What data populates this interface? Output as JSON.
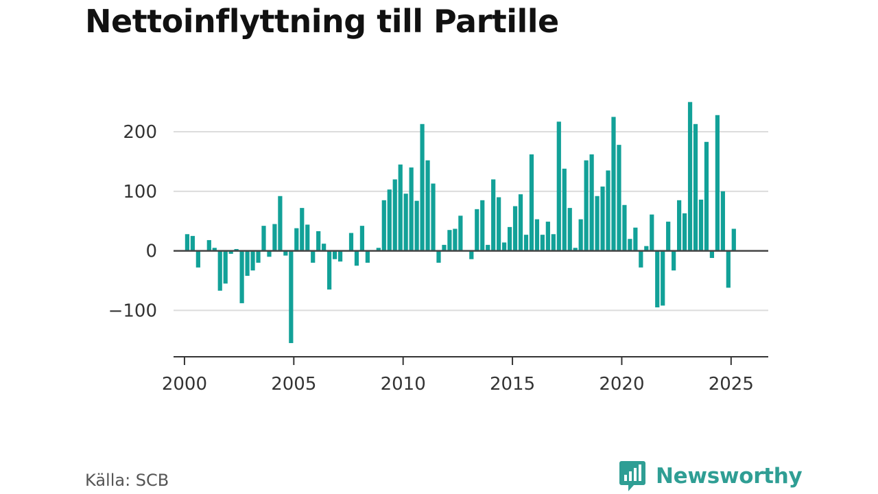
{
  "chart_data": {
    "type": "bar",
    "title": "Nettoinflyttning till Partille",
    "xlabel": "",
    "ylabel": "",
    "color": "#12a198",
    "xlim": [
      1999.5,
      2026.7
    ],
    "ylim": [
      -178,
      260
    ],
    "yticks": [
      -100,
      0,
      100,
      200
    ],
    "xticks": [
      2000,
      2005,
      2010,
      2015,
      2020,
      2025
    ],
    "ytick_labels": [
      "−100",
      "0",
      "100",
      "200"
    ],
    "xtick_labels": [
      "2000",
      "2005",
      "2010",
      "2015",
      "2020",
      "2025"
    ],
    "grid": true,
    "legend": "none",
    "x": [
      2000.125,
      2000.375,
      2000.625,
      2000.875,
      2001.125,
      2001.375,
      2001.625,
      2001.875,
      2002.125,
      2002.375,
      2002.625,
      2002.875,
      2003.125,
      2003.375,
      2003.625,
      2003.875,
      2004.125,
      2004.375,
      2004.625,
      2004.875,
      2005.125,
      2005.375,
      2005.625,
      2005.875,
      2006.125,
      2006.375,
      2006.625,
      2006.875,
      2007.125,
      2007.375,
      2007.625,
      2007.875,
      2008.125,
      2008.375,
      2008.625,
      2008.875,
      2009.125,
      2009.375,
      2009.625,
      2009.875,
      2010.125,
      2010.375,
      2010.625,
      2010.875,
      2011.125,
      2011.375,
      2011.625,
      2011.875,
      2012.125,
      2012.375,
      2012.625,
      2012.875,
      2013.125,
      2013.375,
      2013.625,
      2013.875,
      2014.125,
      2014.375,
      2014.625,
      2014.875,
      2015.125,
      2015.375,
      2015.625,
      2015.875,
      2016.125,
      2016.375,
      2016.625,
      2016.875,
      2017.125,
      2017.375,
      2017.625,
      2017.875,
      2018.125,
      2018.375,
      2018.625,
      2018.875,
      2019.125,
      2019.375,
      2019.625,
      2019.875,
      2020.125,
      2020.375,
      2020.625,
      2020.875,
      2021.125,
      2021.375,
      2021.625,
      2021.875,
      2022.125,
      2022.375,
      2022.625,
      2022.875,
      2023.125,
      2023.375,
      2023.625,
      2023.875,
      2024.125,
      2024.375,
      2024.625,
      2024.875,
      2025.125
    ],
    "values": [
      28,
      25,
      -28,
      0,
      18,
      5,
      -67,
      -55,
      -5,
      3,
      -88,
      -42,
      -33,
      -20,
      42,
      -10,
      45,
      92,
      -8,
      -155,
      38,
      72,
      44,
      -20,
      33,
      12,
      -65,
      -14,
      -18,
      0,
      30,
      -25,
      42,
      -20,
      0,
      5,
      85,
      103,
      120,
      145,
      96,
      140,
      84,
      213,
      152,
      113,
      -20,
      10,
      35,
      37,
      59,
      0,
      -14,
      70,
      85,
      10,
      120,
      90,
      14,
      40,
      75,
      95,
      27,
      162,
      53,
      27,
      49,
      28,
      217,
      138,
      72,
      5,
      53,
      152,
      162,
      92,
      108,
      135,
      225,
      178,
      77,
      20,
      39,
      -28,
      8,
      61,
      -95,
      -92,
      49,
      -33,
      85,
      63,
      250,
      213,
      86,
      183,
      -12,
      228,
      100,
      -62,
      37
    ]
  },
  "source": "Källa: SCB",
  "logo": {
    "text": "Newsworthy",
    "icon": "newsworthy-bar-chart-speech-bubble-icon",
    "color": "#2f9e94"
  }
}
